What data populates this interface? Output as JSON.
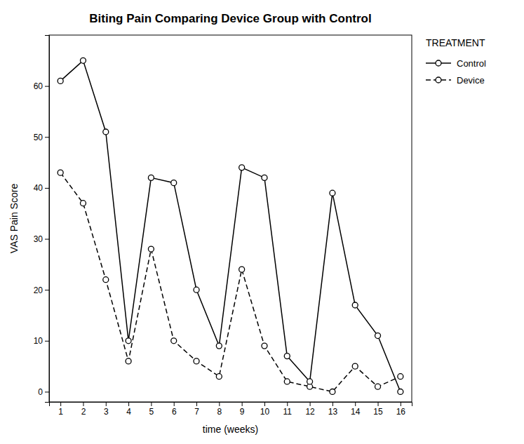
{
  "chart_data": {
    "type": "line",
    "title": "Biting Pain Comparing Device Group with Control",
    "xlabel": "time (weeks)",
    "ylabel": "VAS Pain Score",
    "legend_title": "TREATMENT",
    "x": [
      1,
      2,
      3,
      4,
      5,
      6,
      7,
      8,
      9,
      10,
      11,
      12,
      13,
      14,
      15,
      16
    ],
    "series": [
      {
        "name": "Control",
        "color": "#000000",
        "line_style": "solid",
        "marker": "circle",
        "values": [
          61,
          65,
          51,
          10,
          42,
          41,
          20,
          9,
          44,
          42,
          7,
          2,
          39,
          17,
          11,
          0
        ]
      },
      {
        "name": "Device",
        "color": "#000000",
        "line_style": "dashed",
        "marker": "circle",
        "values": [
          43,
          37,
          22,
          6,
          28,
          10,
          6,
          3,
          24,
          9,
          2,
          1,
          0,
          5,
          1,
          3
        ]
      }
    ],
    "xlim": [
      0.5,
      16.5
    ],
    "ylim": [
      -2,
      70
    ],
    "xticks": [
      1,
      2,
      3,
      4,
      5,
      6,
      7,
      8,
      9,
      10,
      11,
      12,
      13,
      14,
      15,
      16
    ],
    "yticks": [
      0,
      10,
      20,
      30,
      40,
      50,
      60
    ],
    "grid": false,
    "legend": "right"
  }
}
